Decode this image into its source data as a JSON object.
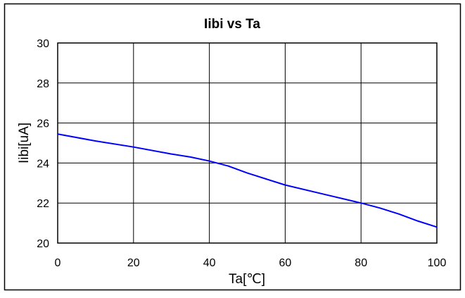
{
  "chart_data": {
    "type": "line",
    "title": "Iibi vs Ta",
    "xlabel": "Ta[℃]",
    "ylabel": "Iibi[uA]",
    "xlim": [
      0,
      100
    ],
    "ylim": [
      20,
      30
    ],
    "xticks": [
      0,
      20,
      40,
      60,
      80,
      100
    ],
    "yticks": [
      20,
      22,
      24,
      26,
      28,
      30
    ],
    "grid": true,
    "series": [
      {
        "color": "#0000ff",
        "x": [
          0,
          10,
          20,
          30,
          35,
          40,
          45,
          50,
          55,
          60,
          70,
          80,
          85,
          90,
          95,
          100
        ],
        "y": [
          25.45,
          25.1,
          24.8,
          24.45,
          24.3,
          24.1,
          23.85,
          23.5,
          23.2,
          22.9,
          22.45,
          22.0,
          21.75,
          21.45,
          21.1,
          20.8
        ]
      }
    ]
  }
}
